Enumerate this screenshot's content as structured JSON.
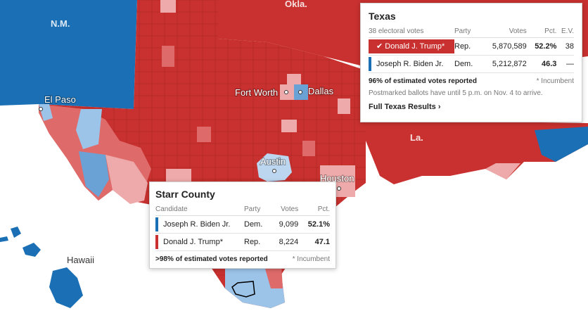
{
  "map": {
    "state_labels": [
      "N.M.",
      "Okla.",
      "La."
    ],
    "city_labels": [
      "El Paso",
      "Fort Worth",
      "Dallas",
      "Austin",
      "Houston"
    ],
    "hawaii_label": "Hawaii",
    "colors": {
      "rep_strong": "#c8312f",
      "rep_medium": "#df6a6a",
      "rep_light": "#eeaaaa",
      "dem_strong": "#1a6fb5",
      "dem_light": "#9cc4e8",
      "border": "#b72a28"
    }
  },
  "state_tooltip": {
    "title": "Texas",
    "headers": [
      "38 electoral votes",
      "Party",
      "Votes",
      "Pct.",
      "E.V."
    ],
    "rows": [
      {
        "name": "Donald J. Trump*",
        "party": "Rep.",
        "votes": "5,870,589",
        "pct": "52.2%",
        "ev": "38",
        "winner": true,
        "check": "✔"
      },
      {
        "name": "Joseph R. Biden Jr.",
        "party": "Dem.",
        "votes": "5,212,872",
        "pct": "46.3",
        "ev": "—",
        "winner": false
      }
    ],
    "reported": "96% of estimated votes reported",
    "incumbent": "* Incumbent",
    "note": "Postmarked ballots have until 5 p.m. on Nov. 4 to arrive.",
    "link": "Full Texas Results ›"
  },
  "county_tooltip": {
    "title": "Starr County",
    "headers": [
      "Candidate",
      "Party",
      "Votes",
      "Pct."
    ],
    "rows": [
      {
        "name": "Joseph R. Biden Jr.",
        "party": "Dem.",
        "votes": "9,099",
        "pct": "52.1%"
      },
      {
        "name": "Donald J. Trump*",
        "party": "Rep.",
        "votes": "8,224",
        "pct": "47.1"
      }
    ],
    "reported": ">98% of estimated votes reported",
    "incumbent": "* Incumbent"
  }
}
